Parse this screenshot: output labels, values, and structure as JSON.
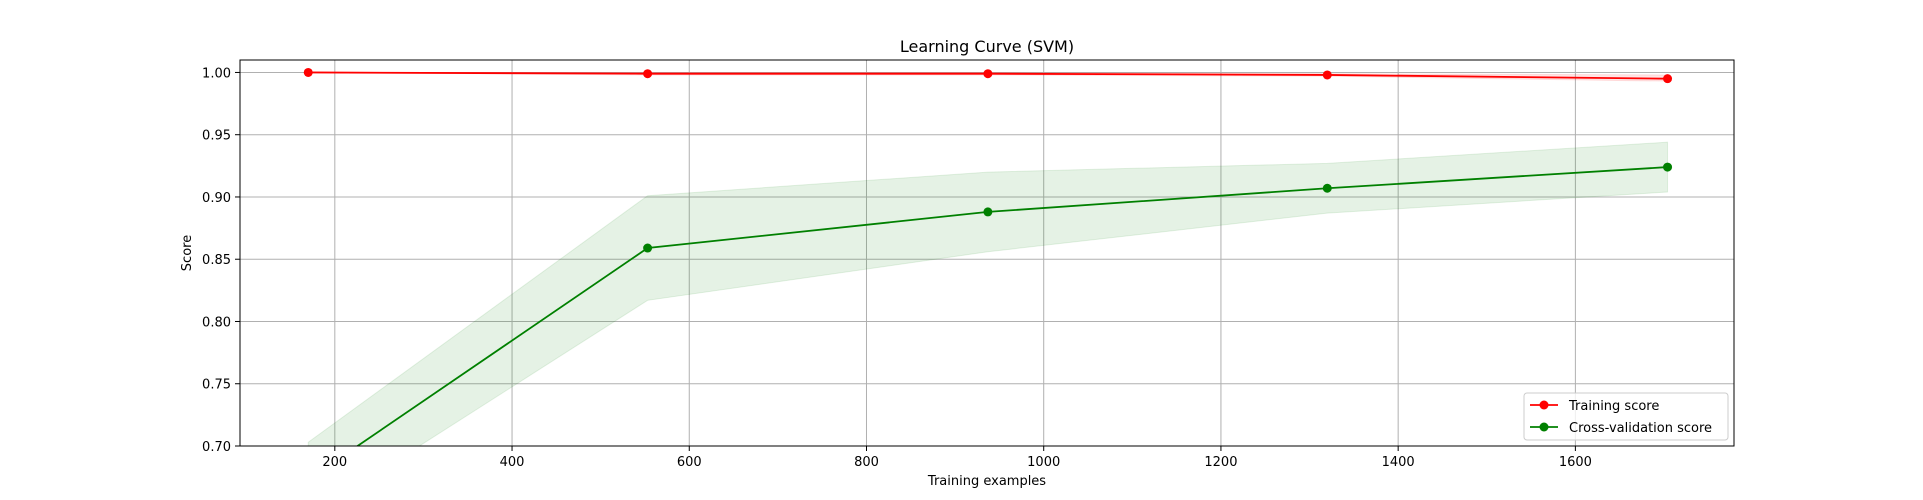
{
  "chart_data": {
    "type": "line",
    "title": "Learning Curve (SVM)",
    "xlabel": "Training examples",
    "ylabel": "Score",
    "xlim": [
      93,
      1779
    ],
    "ylim": [
      0.7,
      1.01
    ],
    "xticks": [
      200,
      400,
      600,
      800,
      1000,
      1200,
      1400,
      1600
    ],
    "yticks": [
      0.7,
      0.75,
      0.8,
      0.85,
      0.9,
      0.95,
      1.0
    ],
    "grid": true,
    "legend_position": "lower-right",
    "x": [
      170,
      553,
      937,
      1320,
      1704
    ],
    "series": [
      {
        "name": "Training score",
        "color": "#ff0000",
        "values": [
          1.0,
          0.999,
          0.999,
          0.998,
          0.995
        ],
        "band_lower": [
          1.0,
          0.998,
          0.998,
          0.997,
          0.993
        ],
        "band_upper": [
          1.0,
          1.0,
          1.0,
          0.999,
          0.998
        ]
      },
      {
        "name": "Cross-validation score",
        "color": "#008000",
        "values": [
          0.673,
          0.859,
          0.888,
          0.907,
          0.924
        ],
        "band_lower": [
          0.643,
          0.817,
          0.856,
          0.887,
          0.904
        ],
        "band_upper": [
          0.703,
          0.901,
          0.92,
          0.927,
          0.944
        ]
      }
    ]
  }
}
